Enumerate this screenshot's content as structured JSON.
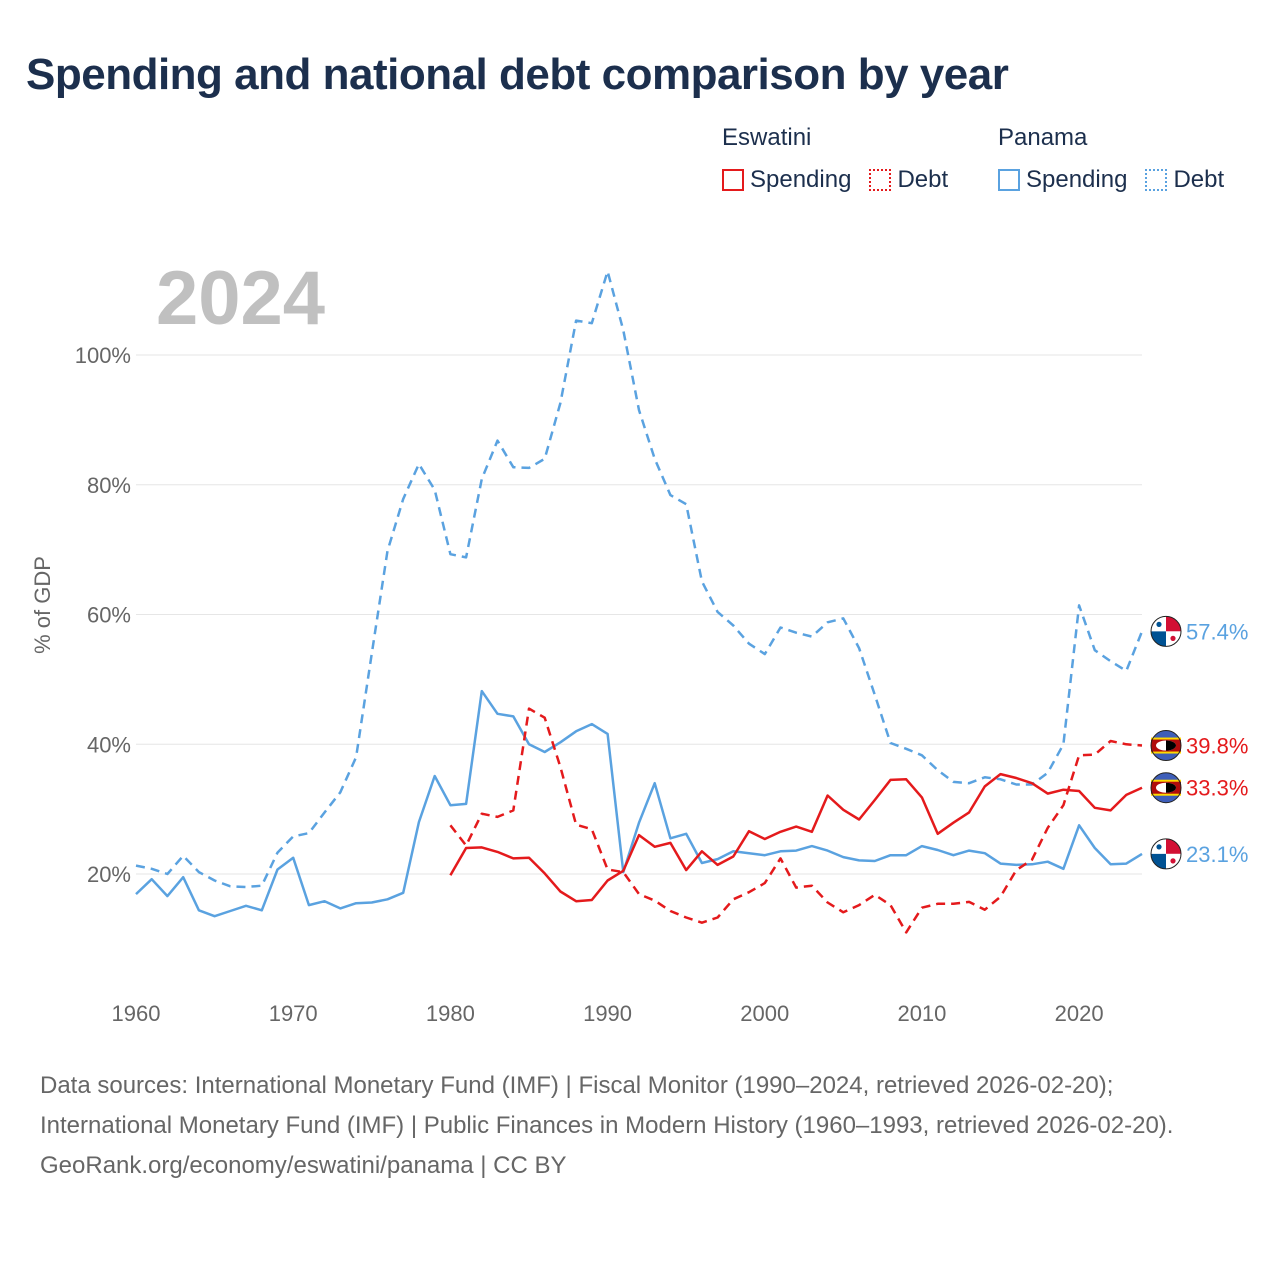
{
  "title": "Spending and national debt comparison by year",
  "year_label": "2024",
  "legend": {
    "groups": [
      {
        "country": "Eswatini",
        "color": "#e41a1c",
        "items": [
          {
            "label": "Spending",
            "style": "solid"
          },
          {
            "label": "Debt",
            "style": "dotted"
          }
        ]
      },
      {
        "country": "Panama",
        "color": "#5aa2e0",
        "items": [
          {
            "label": "Spending",
            "style": "solid"
          },
          {
            "label": "Debt",
            "style": "dotted"
          }
        ]
      }
    ]
  },
  "footer": {
    "sources": "Data sources: International Monetary Fund (IMF) | Fiscal Monitor (1990–2024, retrieved 2026-02-20); International Monetary Fund (IMF) | Public Finances in Modern History (1960–1993, retrieved 2026-02-20).",
    "credit": "GeoRank.org/economy/eswatini/panama | CC BY"
  },
  "chart_data": {
    "type": "line",
    "title": "Spending and national debt comparison by year",
    "xlabel": "",
    "ylabel": "% of GDP",
    "xlim": [
      1960,
      2024
    ],
    "ylim": [
      3,
      113
    ],
    "x_ticks": [
      1960,
      1970,
      1980,
      1990,
      2000,
      2010,
      2020
    ],
    "y_ticks": [
      20,
      40,
      60,
      80,
      100
    ],
    "y_tick_labels": [
      "20%",
      "40%",
      "60%",
      "80%",
      "100%"
    ],
    "grid": true,
    "series": [
      {
        "name": "Panama Debt",
        "country": "Panama",
        "metric": "Debt",
        "color": "#5aa2e0",
        "dash": "dashed",
        "start_year": 1960,
        "values": [
          21.3,
          20.8,
          20.0,
          22.8,
          20.3,
          19.0,
          18.1,
          18.0,
          18.2,
          23.3,
          25.8,
          26.3,
          29.5,
          32.6,
          38.0,
          54.0,
          69.8,
          77.8,
          83.2,
          79.2,
          69.3,
          68.8,
          80.9,
          86.8,
          82.7,
          82.6,
          84.0,
          92.6,
          105.3,
          104.9,
          112.9,
          103.8,
          91.5,
          84.0,
          78.4,
          77.0,
          65.1,
          60.4,
          58.3,
          55.5,
          53.9,
          58.0,
          57.2,
          56.6,
          58.8,
          59.4,
          54.8,
          47.6,
          40.2,
          39.3,
          38.3,
          36.0,
          34.2,
          34.0,
          34.9,
          34.6,
          33.8,
          33.8,
          35.6,
          40.0,
          61.4,
          54.5,
          52.8,
          51.3,
          57.4
        ],
        "end_label": "57.4%"
      },
      {
        "name": "Panama Spending",
        "country": "Panama",
        "metric": "Spending",
        "color": "#5aa2e0",
        "dash": "solid",
        "start_year": 1960,
        "values": [
          16.9,
          19.2,
          16.6,
          19.5,
          14.4,
          13.5,
          14.3,
          15.1,
          14.4,
          20.7,
          22.5,
          15.2,
          15.8,
          14.7,
          15.5,
          15.6,
          16.1,
          17.1,
          28.0,
          35.1,
          30.6,
          30.8,
          48.2,
          44.7,
          44.3,
          40.0,
          38.8,
          40.3,
          42.0,
          43.1,
          41.6,
          20.3,
          27.9,
          34.0,
          25.5,
          26.2,
          21.7,
          22.3,
          23.5,
          23.2,
          22.9,
          23.5,
          23.6,
          24.3,
          23.6,
          22.6,
          22.1,
          22.0,
          22.9,
          22.9,
          24.3,
          23.7,
          22.9,
          23.6,
          23.2,
          21.6,
          21.4,
          21.5,
          21.9,
          20.8,
          27.5,
          24.0,
          21.5,
          21.6,
          23.1
        ],
        "end_label": "23.1%"
      },
      {
        "name": "Eswatini Debt",
        "country": "Eswatini",
        "metric": "Debt",
        "color": "#e41a1c",
        "dash": "dashed",
        "start_year": 1980,
        "values": [
          27.5,
          24.4,
          29.3,
          28.8,
          29.8,
          45.5,
          44.1,
          36.5,
          27.6,
          26.9,
          20.7,
          20.3,
          16.9,
          15.9,
          14.3,
          13.3,
          12.5,
          13.3,
          16.1,
          17.2,
          18.6,
          22.4,
          17.9,
          18.2,
          15.6,
          14.1,
          15.2,
          16.8,
          15.2,
          11.0,
          14.8,
          15.4,
          15.4,
          15.7,
          14.5,
          16.5,
          20.6,
          22.2,
          27.1,
          30.6,
          38.3,
          38.4,
          40.5,
          40.0,
          39.8
        ],
        "end_label": "39.8%"
      },
      {
        "name": "Eswatini Spending",
        "country": "Eswatini",
        "metric": "Spending",
        "color": "#e41a1c",
        "dash": "solid",
        "start_year": 1980,
        "values": [
          19.8,
          24.0,
          24.1,
          23.4,
          22.4,
          22.5,
          20.1,
          17.3,
          15.8,
          16.0,
          19.0,
          20.5,
          26.0,
          24.2,
          24.8,
          20.6,
          23.5,
          21.4,
          22.7,
          26.6,
          25.4,
          26.5,
          27.3,
          26.5,
          32.1,
          29.9,
          28.4,
          31.4,
          34.5,
          34.6,
          31.8,
          26.2,
          27.9,
          29.5,
          33.5,
          35.4,
          34.8,
          34.0,
          32.4,
          33.0,
          32.8,
          30.2,
          29.8,
          32.2,
          33.3
        ],
        "end_label": "33.3%"
      }
    ]
  }
}
